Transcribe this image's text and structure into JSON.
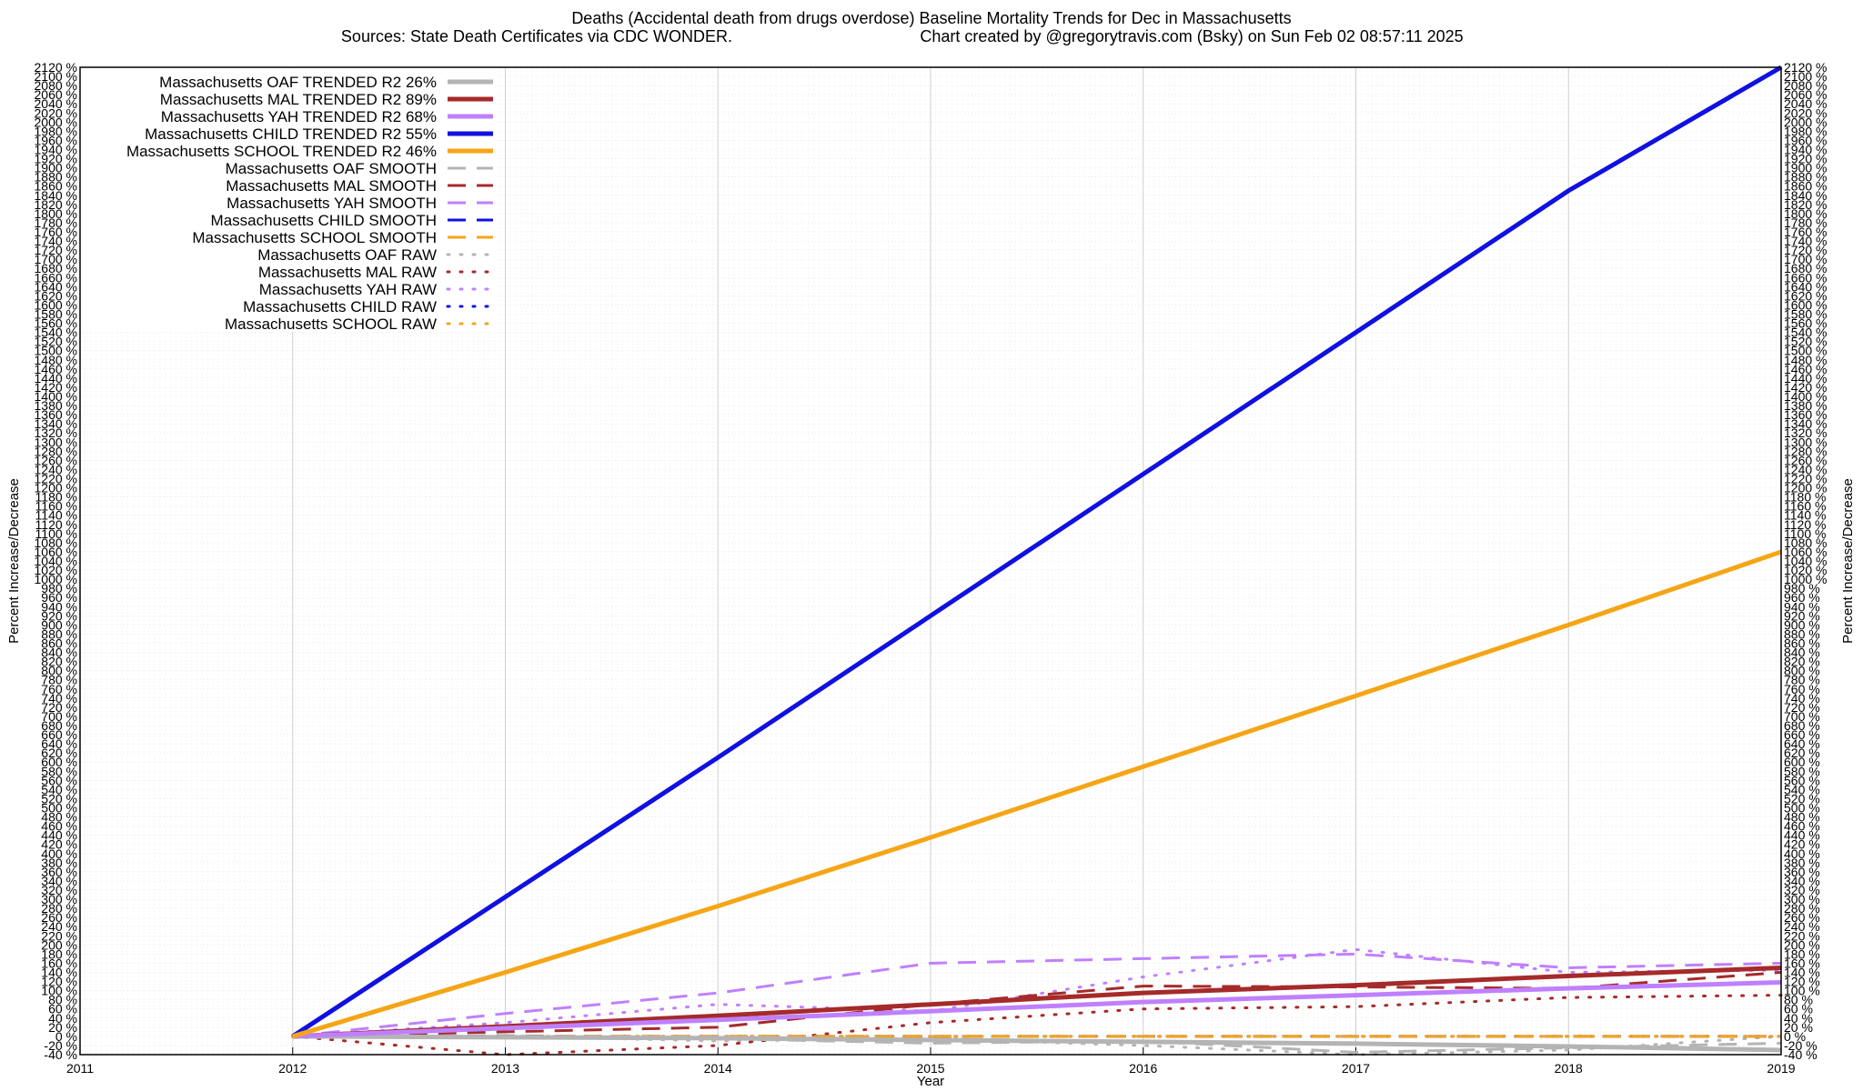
{
  "chart_data": {
    "type": "line",
    "title": "Deaths (Accidental death from drugs overdose)  Baseline Mortality Trends for Dec in Massachusetts",
    "subtitle_left": "Sources: State Death Certificates via CDC WONDER.",
    "subtitle_right": "Chart created by @gregorytravis.com (Bsky) on Sun Feb 02 08:57:11 2025",
    "xlabel": "Year",
    "ylabel": "Percent Increase/Decrease",
    "ylabel_right": "Percent Increase/Decrease",
    "xlim": [
      2011,
      2019
    ],
    "ylim": [
      -40,
      2120
    ],
    "x_ticks": [
      "2011",
      "2012",
      "2013",
      "2014",
      "2015",
      "2016",
      "2017",
      "2018",
      "2019"
    ],
    "y_tick_step": 20,
    "y_tick_suffix": " %",
    "grid": true,
    "legend_position": "top-left",
    "colors": {
      "OAF": "#b4b4b4",
      "MAL": "#a52a2a",
      "YAH": "#bf80ff",
      "CHILD": "#1010e0",
      "SCHOOL": "#f5a516"
    },
    "x": [
      2012,
      2013,
      2014,
      2015,
      2016,
      2017,
      2018,
      2019
    ],
    "series": [
      {
        "name": "Massachusetts OAF TRENDED R2  26%",
        "group": "OAF",
        "style": "trend",
        "values": [
          0,
          -2,
          -4,
          -8,
          -12,
          -16,
          -22,
          -30
        ]
      },
      {
        "name": "Massachusetts MAL TRENDED R2  89%",
        "group": "MAL",
        "style": "trend",
        "values": [
          0,
          22,
          45,
          70,
          95,
          112,
          132,
          150
        ]
      },
      {
        "name": "Massachusetts YAH TRENDED R2  68%",
        "group": "YAH",
        "style": "trend",
        "values": [
          0,
          18,
          36,
          55,
          75,
          90,
          105,
          118
        ]
      },
      {
        "name": "Massachusetts CHILD TRENDED R2  55%",
        "group": "CHILD",
        "style": "trend",
        "values": [
          0,
          305,
          610,
          920,
          1230,
          1540,
          1850,
          2120
        ]
      },
      {
        "name": "Massachusetts SCHOOL TRENDED R2  46%",
        "group": "SCHOOL",
        "style": "trend",
        "values": [
          0,
          140,
          285,
          435,
          590,
          745,
          900,
          1060
        ]
      },
      {
        "name": "Massachusetts OAF SMOOTH",
        "group": "OAF",
        "style": "smooth",
        "values": [
          0,
          2,
          -5,
          -15,
          -10,
          -35,
          -25,
          -15
        ]
      },
      {
        "name": "Massachusetts MAL SMOOTH",
        "group": "MAL",
        "style": "smooth",
        "values": [
          0,
          10,
          20,
          70,
          110,
          108,
          105,
          140
        ]
      },
      {
        "name": "Massachusetts YAH SMOOTH",
        "group": "YAH",
        "style": "smooth",
        "values": [
          0,
          50,
          95,
          160,
          170,
          180,
          150,
          160
        ]
      },
      {
        "name": "Massachusetts CHILD SMOOTH",
        "group": "CHILD",
        "style": "smooth",
        "values": [
          0,
          0,
          0,
          0,
          0,
          0,
          0,
          0
        ]
      },
      {
        "name": "Massachusetts SCHOOL SMOOTH",
        "group": "SCHOOL",
        "style": "smooth",
        "values": [
          0,
          0,
          0,
          0,
          0,
          0,
          0,
          0
        ]
      },
      {
        "name": "Massachusetts OAF RAW",
        "group": "OAF",
        "style": "raw",
        "values": [
          0,
          0,
          -10,
          -5,
          -20,
          -40,
          -30,
          0
        ]
      },
      {
        "name": "Massachusetts MAL RAW",
        "group": "MAL",
        "style": "raw",
        "values": [
          0,
          -40,
          -20,
          30,
          60,
          65,
          85,
          90
        ]
      },
      {
        "name": "Massachusetts YAH RAW",
        "group": "YAH",
        "style": "raw",
        "values": [
          0,
          30,
          70,
          55,
          130,
          190,
          140,
          145
        ]
      },
      {
        "name": "Massachusetts CHILD RAW",
        "group": "CHILD",
        "style": "raw",
        "values": [
          0,
          0,
          0,
          0,
          0,
          0,
          0,
          0
        ]
      },
      {
        "name": "Massachusetts SCHOOL RAW",
        "group": "SCHOOL",
        "style": "raw",
        "values": [
          0,
          0,
          0,
          0,
          0,
          0,
          0,
          0
        ]
      }
    ]
  }
}
